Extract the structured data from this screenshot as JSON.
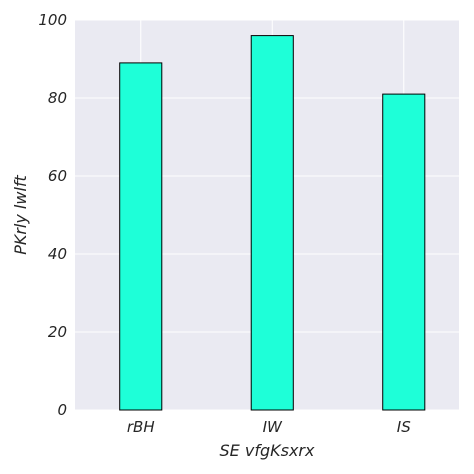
{
  "chart_data": {
    "type": "bar",
    "categories": [
      "rBH",
      "IW",
      "IS"
    ],
    "values": [
      89,
      96,
      81
    ],
    "title": "",
    "xlabel": "SE vfgKsxrx",
    "ylabel": "PKrly  lwlft",
    "ylim": [
      0,
      100
    ],
    "yticks": [
      0,
      20,
      40,
      60,
      80,
      100
    ],
    "grid": true,
    "legend": "none",
    "colors": {
      "bar_fill": "#1effd8",
      "bar_edge": "#000000",
      "plot_background": "#eaeaf2",
      "grid": "#ffffff"
    }
  }
}
